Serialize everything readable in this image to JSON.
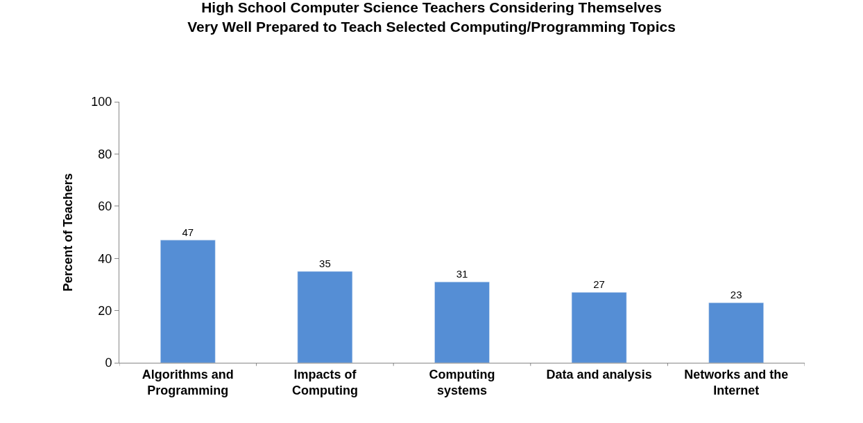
{
  "chart_data": {
    "type": "bar",
    "title": "High School Computer Science Teachers Considering Themselves\nVery Well Prepared to Teach Selected Computing/Programming Topics",
    "ylabel": "Percent of Teachers",
    "categories": [
      "Algorithms and\nProgramming",
      "Impacts of\nComputing",
      "Computing\nsystems",
      "Data and analysis",
      "Networks and the\nInternet"
    ],
    "values": [
      47,
      35,
      31,
      27,
      23
    ],
    "color": "#558ed5",
    "ylim": [
      0,
      100
    ],
    "yticks": [
      0,
      20,
      40,
      60,
      80,
      100
    ],
    "grid": false,
    "data_labels": true,
    "legend": false
  }
}
